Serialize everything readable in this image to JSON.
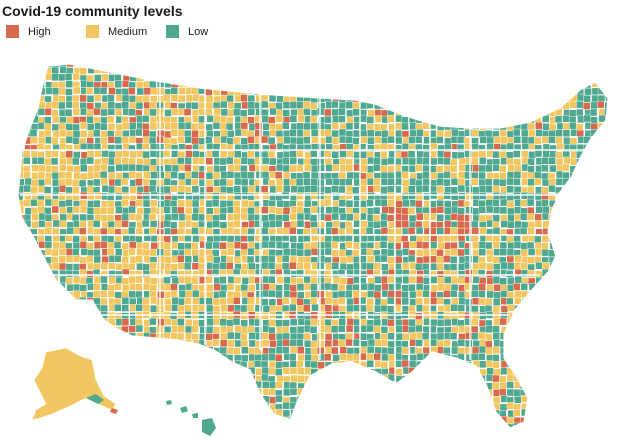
{
  "title": "Covid-19 community levels",
  "legend": [
    {
      "key": "high",
      "label": "High",
      "color": "#d9694c"
    },
    {
      "key": "medium",
      "label": "Medium",
      "color": "#f2c761"
    },
    {
      "key": "low",
      "label": "Low",
      "color": "#4fa991"
    }
  ],
  "colors": {
    "county_border": "#ffffff",
    "background": "#ffffff"
  }
}
